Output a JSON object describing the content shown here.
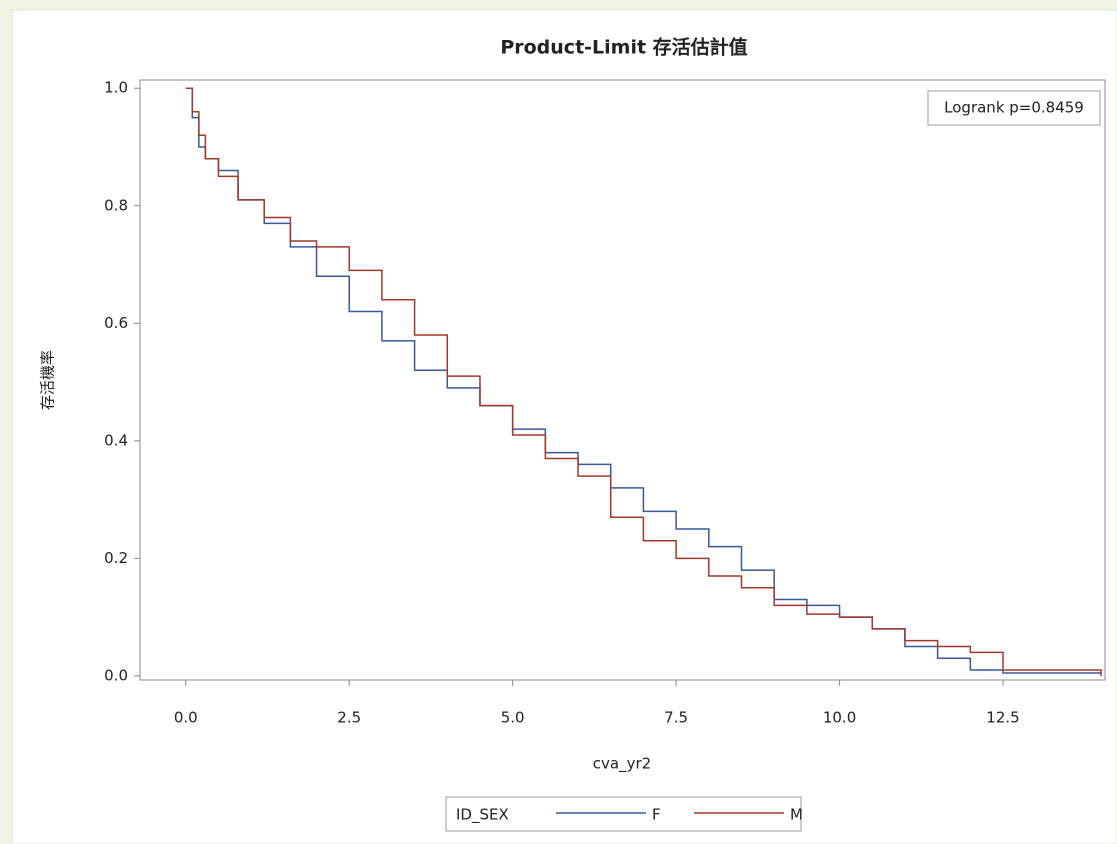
{
  "chart_data": {
    "type": "step",
    "title": "Product-Limit 存活估計值",
    "x_label": "cva_yr2",
    "y_label": "存活機率",
    "annotation": "Logrank p=0.8459",
    "legend_title": "ID_SEX",
    "x": [
      0,
      0.1,
      0.2,
      0.3,
      0.5,
      0.8,
      1.2,
      1.6,
      2.0,
      2.5,
      3.0,
      3.5,
      4.0,
      4.5,
      5.0,
      5.5,
      6.0,
      6.5,
      7.0,
      7.5,
      8.0,
      8.5,
      9.0,
      9.5,
      10.0,
      10.5,
      11.0,
      11.5,
      12.0,
      12.5,
      14.0
    ],
    "series": [
      {
        "name": "F",
        "color": "#3b5998",
        "values": [
          1.0,
          0.95,
          0.9,
          0.88,
          0.86,
          0.81,
          0.77,
          0.73,
          0.68,
          0.62,
          0.57,
          0.52,
          0.49,
          0.46,
          0.42,
          0.38,
          0.36,
          0.32,
          0.28,
          0.25,
          0.22,
          0.18,
          0.13,
          0.12,
          0.1,
          0.08,
          0.05,
          0.03,
          0.01,
          0.005,
          0.005
        ]
      },
      {
        "name": "M",
        "color": "#a0392b",
        "values": [
          1.0,
          0.96,
          0.92,
          0.88,
          0.85,
          0.81,
          0.78,
          0.74,
          0.73,
          0.69,
          0.64,
          0.58,
          0.51,
          0.46,
          0.41,
          0.37,
          0.34,
          0.27,
          0.23,
          0.2,
          0.17,
          0.15,
          0.12,
          0.105,
          0.1,
          0.08,
          0.06,
          0.05,
          0.04,
          0.01,
          0.0
        ]
      }
    ],
    "xlim": [
      -0.7,
      14.06
    ],
    "ylim": [
      -0.007,
      1.014
    ],
    "xticks": [
      {
        "value": 0,
        "label": "0.0"
      },
      2.5,
      {
        "value": 5,
        "label": "5.0"
      },
      7.5,
      {
        "value": 10,
        "label": "10.0"
      },
      12.5
    ],
    "yticks": [
      {
        "value": 0,
        "label": "0.0"
      },
      0.2,
      0.4,
      0.6,
      0.8,
      {
        "value": 1,
        "label": "1.0"
      }
    ],
    "grid": false
  }
}
